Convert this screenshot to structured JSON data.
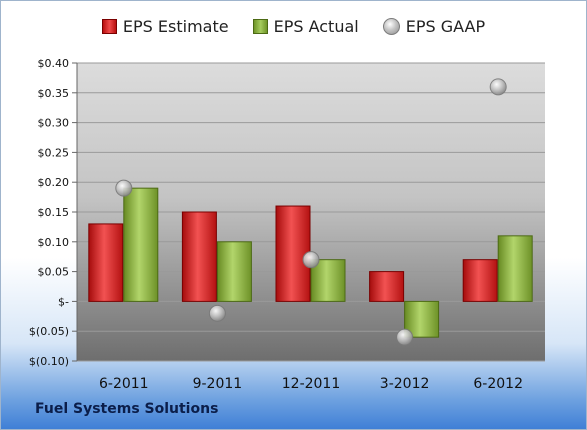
{
  "legend": {
    "estimate": "EPS Estimate",
    "actual": "EPS Actual",
    "gaap": "EPS GAAP"
  },
  "footer": {
    "company": "Fuel Systems Solutions"
  },
  "colors": {
    "estimate": "#d42a2a",
    "actual": "#8cb443",
    "gaap": "#b5b5b5",
    "plot_top": "#d9d9d9",
    "plot_bottom": "#7a7a7a"
  },
  "chart_data": {
    "type": "bar",
    "categories": [
      "6-2011",
      "9-2011",
      "12-2011",
      "3-2012",
      "6-2012"
    ],
    "series": [
      {
        "name": "EPS Estimate",
        "kind": "bar",
        "values": [
          0.13,
          0.15,
          0.16,
          0.05,
          0.07
        ]
      },
      {
        "name": "EPS Actual",
        "kind": "bar",
        "values": [
          0.19,
          0.1,
          0.07,
          -0.06,
          0.11
        ]
      },
      {
        "name": "EPS GAAP",
        "kind": "marker",
        "values": [
          0.19,
          -0.02,
          0.07,
          -0.06,
          0.36
        ]
      }
    ],
    "ylim": [
      -0.1,
      0.4
    ],
    "yticks": [
      0.4,
      0.35,
      0.3,
      0.25,
      0.2,
      0.15,
      0.1,
      0.05,
      0.0,
      -0.05,
      -0.1
    ],
    "ytick_labels": [
      "$0.40",
      "$0.35",
      "$0.30",
      "$0.25",
      "$0.20",
      "$0.15",
      "$0.10",
      "$0.05",
      "$-",
      "$(0.05)",
      "$(0.10)"
    ],
    "grid": true,
    "legend_position": "top"
  }
}
